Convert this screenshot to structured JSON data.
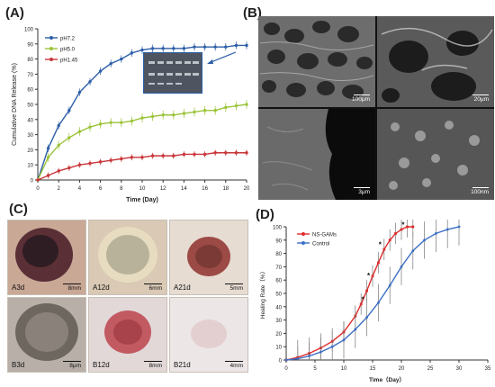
{
  "panels": {
    "a": "(A)",
    "b": "(B)",
    "c": "(C)",
    "d": "(D)"
  },
  "sem_scales": [
    "100μm",
    "20μm",
    "3μm",
    "100nm"
  ],
  "photo_labels": [
    {
      "label": "A3d",
      "scale": "8mm"
    },
    {
      "label": "A12d",
      "scale": "6mm"
    },
    {
      "label": "A21d",
      "scale": "5mm"
    },
    {
      "label": "B3d",
      "scale": "8μm"
    },
    {
      "label": "B12d",
      "scale": "8mm"
    },
    {
      "label": "B21d",
      "scale": "4mm"
    }
  ],
  "colors": {
    "ph72": "#2e5fa8",
    "ph50": "#9cc43a",
    "ph145": "#c9353a",
    "nsgams": "#e02b2b",
    "control": "#3c6fc4"
  },
  "chart_data": [
    {
      "type": "line",
      "xlabel": "Time (Day)",
      "ylabel": "Cumulative DNA Release (%)",
      "xlim": [
        0,
        20
      ],
      "ylim": [
        0,
        100
      ],
      "xticks": [
        0,
        2,
        4,
        6,
        8,
        10,
        12,
        14,
        16,
        18,
        20
      ],
      "yticks": [
        0,
        10,
        20,
        30,
        40,
        50,
        60,
        70,
        80,
        90,
        100
      ],
      "legend_position": "top-left",
      "series": [
        {
          "name": "pH7.2",
          "color": "#2e5fa8",
          "x": [
            0,
            1,
            2,
            3,
            4,
            5,
            6,
            7,
            8,
            9,
            10,
            11,
            12,
            13,
            14,
            15,
            16,
            17,
            18,
            19,
            20
          ],
          "y": [
            0,
            21,
            36,
            46,
            58,
            65,
            72,
            77,
            80,
            84,
            86,
            87,
            87,
            87,
            87,
            88,
            88,
            88,
            88,
            89,
            89
          ]
        },
        {
          "name": "pH5.0",
          "color": "#9cc43a",
          "x": [
            0,
            1,
            2,
            3,
            4,
            5,
            6,
            7,
            8,
            9,
            10,
            11,
            12,
            13,
            14,
            15,
            16,
            17,
            18,
            19,
            20
          ],
          "y": [
            0,
            15,
            23,
            28,
            32,
            35,
            37,
            38,
            38,
            39,
            41,
            42,
            43,
            43,
            44,
            45,
            46,
            46,
            48,
            49,
            50
          ]
        },
        {
          "name": "pH1.45",
          "color": "#c9353a",
          "x": [
            0,
            1,
            2,
            3,
            4,
            5,
            6,
            7,
            8,
            9,
            10,
            11,
            12,
            13,
            14,
            15,
            16,
            17,
            18,
            19,
            20
          ],
          "y": [
            0,
            3,
            6,
            8,
            10,
            11,
            12,
            13,
            14,
            15,
            15,
            16,
            16,
            16,
            17,
            17,
            17,
            18,
            18,
            18,
            18
          ]
        }
      ]
    },
    {
      "type": "line",
      "xlabel": "Time（Day）",
      "ylabel": "Healing Rate（%）",
      "xlim": [
        0,
        35
      ],
      "ylim": [
        0,
        100
      ],
      "xticks": [
        0,
        5,
        10,
        15,
        20,
        25,
        30,
        35
      ],
      "yticks": [
        0,
        10,
        20,
        30,
        40,
        50,
        60,
        70,
        80,
        90,
        100
      ],
      "legend_position": "top-left",
      "series": [
        {
          "name": "NS-GAMs",
          "color": "#e02b2b",
          "x": [
            0,
            2,
            4,
            6,
            8,
            10,
            12,
            13,
            14,
            15,
            16,
            17,
            18,
            19,
            20,
            21,
            22
          ],
          "y": [
            0,
            2,
            5,
            9,
            14,
            21,
            33,
            42,
            52,
            63,
            73,
            83,
            90,
            95,
            98,
            100,
            100
          ]
        },
        {
          "name": "Control",
          "color": "#3c6fc4",
          "x": [
            0,
            2,
            4,
            6,
            8,
            10,
            12,
            14,
            16,
            18,
            20,
            22,
            24,
            26,
            28,
            30
          ],
          "y": [
            0,
            1,
            3,
            6,
            10,
            15,
            23,
            32,
            43,
            56,
            70,
            82,
            90,
            95,
            98,
            100
          ]
        }
      ],
      "significance_marks": "*"
    }
  ]
}
